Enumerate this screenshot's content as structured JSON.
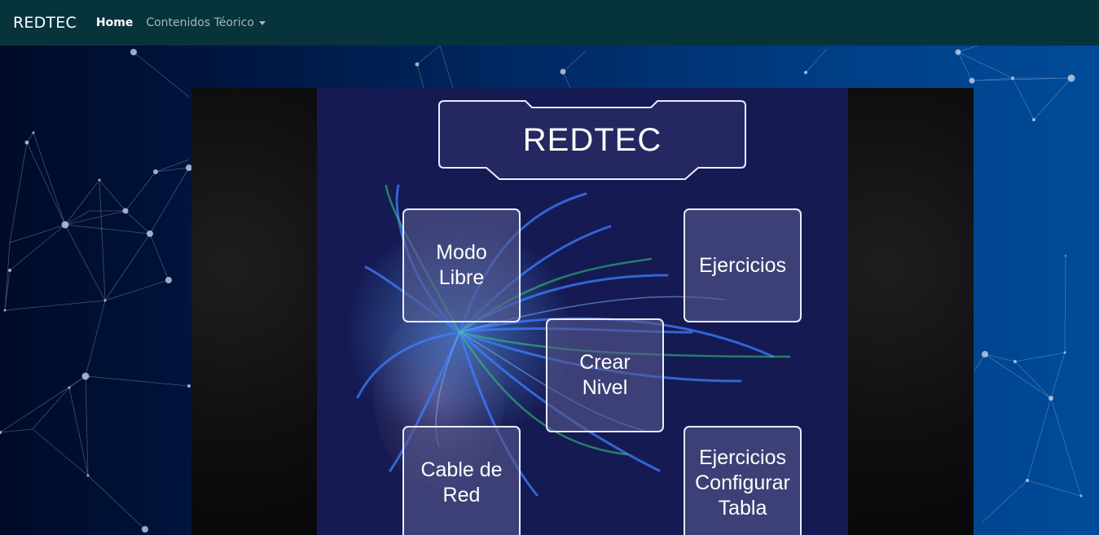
{
  "navbar": {
    "brand": "REDTEC",
    "home": "Home",
    "contenidos": "Contenidos Téorico"
  },
  "game": {
    "title": "REDTEC",
    "buttons": {
      "modo_libre": "Modo\nLibre",
      "ejercicios": "Ejercicios",
      "crear_nivel": "Crear\nNivel",
      "cable_red": "Cable de\nRed",
      "ejercicios_tabla": "Ejercicios\nConfigurar\nTabla"
    }
  },
  "colors": {
    "navbar": "#07333b",
    "screen": "#151a52",
    "button_border": "#e9ebff"
  }
}
